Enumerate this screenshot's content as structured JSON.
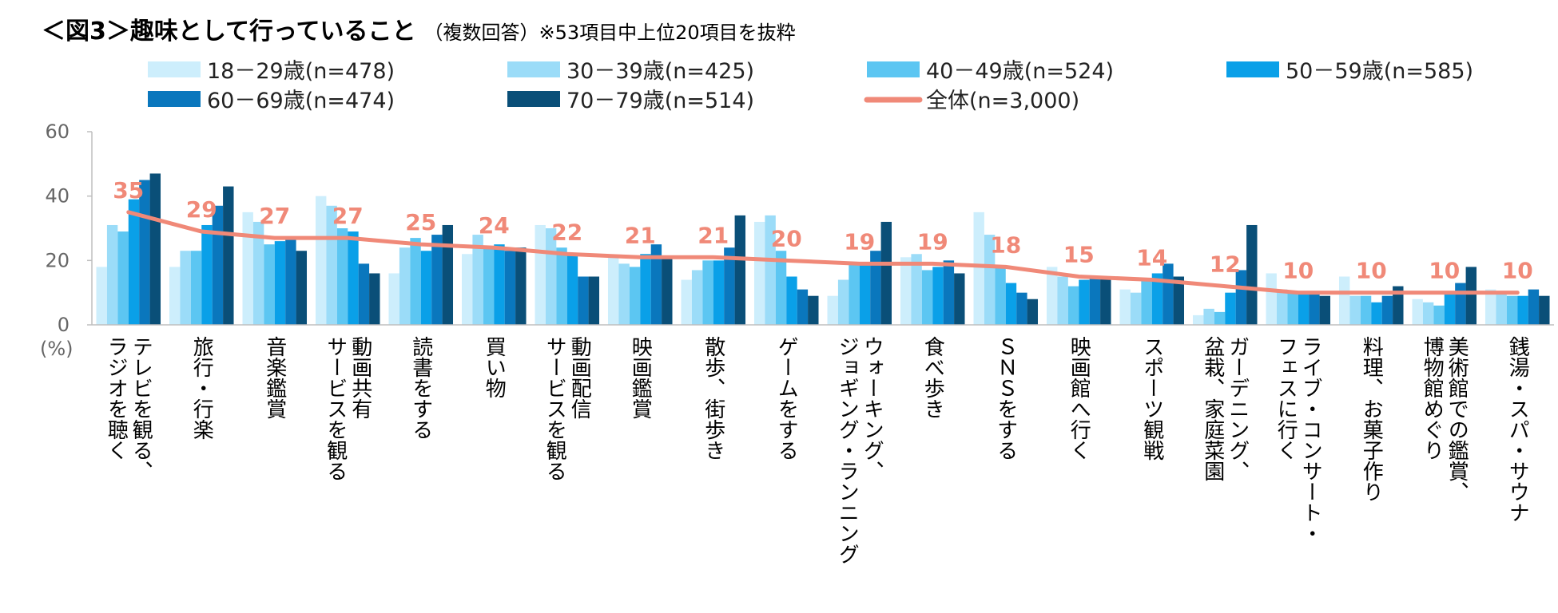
{
  "title": {
    "main": "＜図3＞趣味として行っていること",
    "sub": "（複数回答）※53項目中上位20項目を抜粋"
  },
  "colors": {
    "s18": "#cdeefc",
    "s30": "#9bdcf8",
    "s40": "#5cc6f2",
    "s50": "#0aa0e8",
    "s60": "#0a77bd",
    "s70": "#0a4f78",
    "total": "#f08978",
    "axis": "#bfbfbf"
  },
  "chart_data": {
    "type": "bar",
    "y_unit_label": "(%)",
    "ylim": [
      0,
      60
    ],
    "yticks": [
      0,
      20,
      40,
      60
    ],
    "categories": [
      [
        "テレビを観る、",
        "ラジオを聴く"
      ],
      [
        "旅行・行楽"
      ],
      [
        "音楽鑑賞"
      ],
      [
        "動画共有",
        "サービスを観る"
      ],
      [
        "読書をする"
      ],
      [
        "買い物"
      ],
      [
        "動画配信",
        "サービスを観る"
      ],
      [
        "映画鑑賞"
      ],
      [
        "散歩、街歩き"
      ],
      [
        "ゲームをする"
      ],
      [
        "ウォーキング、",
        "ジョギング・ランニング"
      ],
      [
        "食べ歩き"
      ],
      [
        "ＳＮＳをする"
      ],
      [
        "映画館へ行く"
      ],
      [
        "スポーツ観戦"
      ],
      [
        "ガーデニング、",
        "盆栽、家庭菜園"
      ],
      [
        "ライブ・コンサート・",
        "フェスに行く"
      ],
      [
        "料理、お菓子作り"
      ],
      [
        "美術館での鑑賞、",
        "博物館めぐり"
      ],
      [
        "銭湯・スパ・サウナ"
      ]
    ],
    "series": [
      {
        "name": "18－29歳(n=478)",
        "color_key": "s18",
        "values": [
          18,
          18,
          35,
          40,
          16,
          22,
          31,
          21,
          14,
          32,
          9,
          21,
          35,
          18,
          11,
          3,
          16,
          15,
          8,
          11
        ]
      },
      {
        "name": "30－39歳(n=425)",
        "color_key": "s30",
        "values": [
          31,
          23,
          32,
          37,
          24,
          28,
          30,
          19,
          17,
          34,
          14,
          22,
          28,
          15,
          10,
          5,
          11,
          9,
          7,
          10
        ]
      },
      {
        "name": "40－49歳(n=524)",
        "color_key": "s40",
        "values": [
          29,
          23,
          25,
          30,
          27,
          24,
          24,
          18,
          20,
          23,
          19,
          17,
          18,
          12,
          14,
          4,
          10,
          9,
          6,
          9
        ]
      },
      {
        "name": "50－59歳(n=585)",
        "color_key": "s50",
        "values": [
          39,
          31,
          26,
          29,
          23,
          25,
          22,
          22,
          20,
          15,
          19,
          18,
          13,
          14,
          16,
          10,
          10,
          7,
          10,
          9
        ]
      },
      {
        "name": "60－69歳(n=474)",
        "color_key": "s60",
        "values": [
          45,
          37,
          27,
          19,
          28,
          23,
          15,
          25,
          24,
          11,
          23,
          20,
          10,
          15,
          19,
          17,
          10,
          9,
          13,
          11
        ]
      },
      {
        "name": "70－79歳(n=514)",
        "color_key": "s70",
        "values": [
          47,
          43,
          23,
          16,
          31,
          24,
          15,
          21,
          34,
          9,
          32,
          16,
          8,
          15,
          15,
          31,
          9,
          12,
          18,
          9
        ]
      }
    ],
    "line": {
      "name": "全体(n=3,000)",
      "color_key": "total",
      "values": [
        35,
        29,
        27,
        27,
        25,
        24,
        22,
        21,
        21,
        20,
        19,
        19,
        18,
        15,
        14,
        12,
        10,
        10,
        10,
        10
      ]
    }
  }
}
